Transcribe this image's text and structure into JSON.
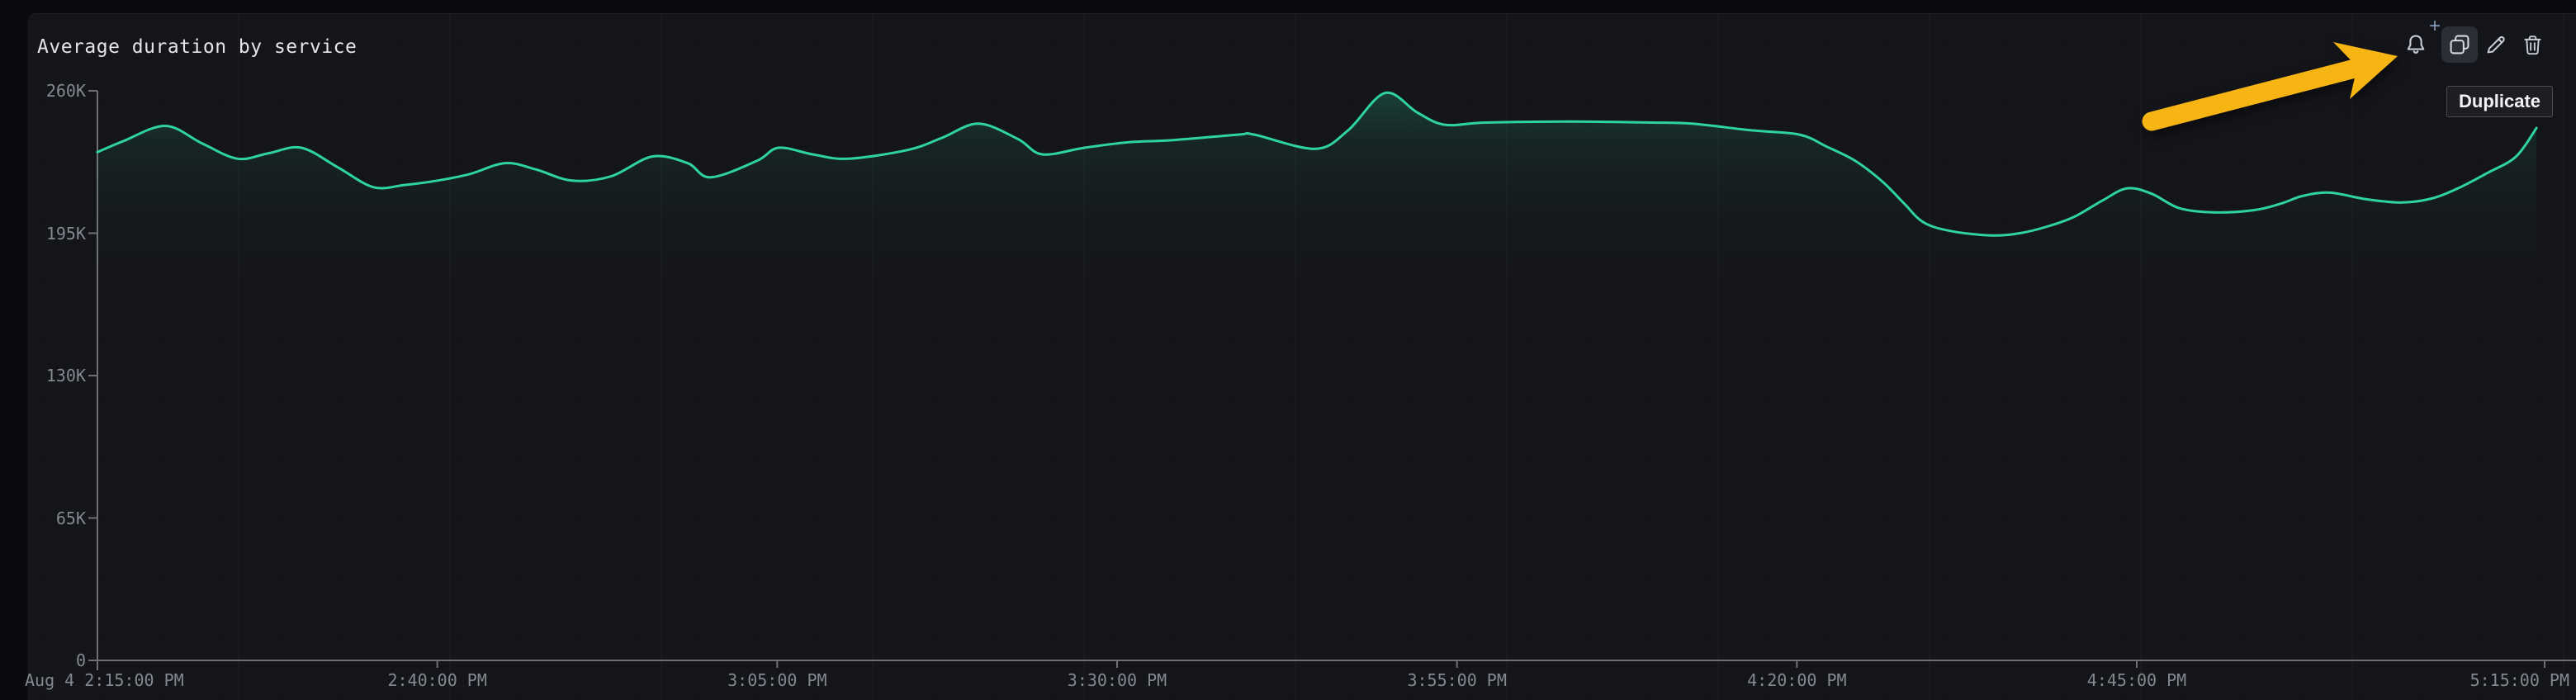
{
  "panel": {
    "title": "Average duration by service"
  },
  "toolbar": {
    "tooltip": "Duplicate",
    "alert_plus_glyph": "+",
    "icons": [
      {
        "name": "bell-plus-icon",
        "action": "create-monitor"
      },
      {
        "name": "duplicate-icon",
        "action": "duplicate",
        "hovered": true
      },
      {
        "name": "pencil-icon",
        "action": "edit"
      },
      {
        "name": "trash-icon",
        "action": "delete"
      }
    ],
    "icon_color": "#c9ccd3",
    "hover_bg": "#2b2e35"
  },
  "annotation": {
    "type": "arrow",
    "color": "#f7b513",
    "points_at": "duplicate-button"
  },
  "chart_data": {
    "type": "line",
    "title": "Average duration by service",
    "xlabel": "",
    "ylabel": "",
    "grid": false,
    "legend": "none",
    "line_color": "#2ed3a1",
    "axis_color": "#6e7076",
    "label_color": "#85888e",
    "ylim": [
      0,
      260000
    ],
    "x_axis": {
      "unit": "time",
      "ticks": [
        {
          "minutes": 0,
          "label": "Aug 4 2:15:00 PM"
        },
        {
          "minutes": 25,
          "label": "2:40:00 PM"
        },
        {
          "minutes": 50,
          "label": "3:05:00 PM"
        },
        {
          "minutes": 75,
          "label": "3:30:00 PM"
        },
        {
          "minutes": 100,
          "label": "3:55:00 PM"
        },
        {
          "minutes": 125,
          "label": "4:20:00 PM"
        },
        {
          "minutes": 150,
          "label": "4:45:00 PM"
        },
        {
          "minutes": 180,
          "label": "5:15:00 PM"
        }
      ]
    },
    "y_axis": {
      "ticks": [
        {
          "value": 260000,
          "label": "260K"
        },
        {
          "value": 195000,
          "label": "195K"
        },
        {
          "value": 130000,
          "label": "130K"
        },
        {
          "value": 65000,
          "label": "65K"
        },
        {
          "value": 0,
          "label": "0"
        }
      ]
    },
    "series": [
      {
        "name": "average-duration",
        "color": "#2ed3a1",
        "points": [
          [
            0,
            232000
          ],
          [
            1.9,
            237000
          ],
          [
            5,
            244000
          ],
          [
            7.7,
            236000
          ],
          [
            10.3,
            229000
          ],
          [
            12.6,
            231500
          ],
          [
            15,
            234000
          ],
          [
            17.7,
            225000
          ],
          [
            20.3,
            216000
          ],
          [
            22.6,
            217000
          ],
          [
            25,
            219000
          ],
          [
            27.4,
            222000
          ],
          [
            30,
            227000
          ],
          [
            32.3,
            224000
          ],
          [
            34.9,
            219000
          ],
          [
            37.8,
            221000
          ],
          [
            40.8,
            230000
          ],
          [
            43.4,
            227000
          ],
          [
            45.1,
            220500
          ],
          [
            48.5,
            228000
          ],
          [
            50.1,
            234000
          ],
          [
            52.6,
            231000
          ],
          [
            55.2,
            229000
          ],
          [
            59.6,
            233000
          ],
          [
            62.1,
            238500
          ],
          [
            64.8,
            245000
          ],
          [
            67.7,
            238000
          ],
          [
            69.5,
            231000
          ],
          [
            72.6,
            234000
          ],
          [
            75.8,
            236500
          ],
          [
            79.1,
            237500
          ],
          [
            83.9,
            240000
          ],
          [
            85.1,
            240000
          ],
          [
            89.6,
            233500
          ],
          [
            92,
            242000
          ],
          [
            94.7,
            259000
          ],
          [
            97.1,
            250000
          ],
          [
            99.1,
            244500
          ],
          [
            102.1,
            245500
          ],
          [
            108.2,
            246000
          ],
          [
            114.3,
            245500
          ],
          [
            117.3,
            245000
          ],
          [
            121.6,
            242000
          ],
          [
            125.2,
            240000
          ],
          [
            127.2,
            234500
          ],
          [
            129.3,
            228000
          ],
          [
            131.3,
            218500
          ],
          [
            132.9,
            208500
          ],
          [
            134.3,
            200000
          ],
          [
            136.3,
            196000
          ],
          [
            139.3,
            194000
          ],
          [
            141.4,
            195000
          ],
          [
            143.4,
            198000
          ],
          [
            145.4,
            202500
          ],
          [
            147.5,
            210000
          ],
          [
            149.3,
            215500
          ],
          [
            151.1,
            213000
          ],
          [
            153.1,
            206500
          ],
          [
            155.6,
            204500
          ],
          [
            158.6,
            205500
          ],
          [
            160.6,
            208500
          ],
          [
            162.2,
            212000
          ],
          [
            164.2,
            213500
          ],
          [
            166.9,
            210500
          ],
          [
            169.5,
            209000
          ],
          [
            171.8,
            211000
          ],
          [
            173.8,
            216000
          ],
          [
            175.8,
            222500
          ],
          [
            177.9,
            230000
          ],
          [
            179.4,
            243000
          ]
        ]
      }
    ]
  }
}
